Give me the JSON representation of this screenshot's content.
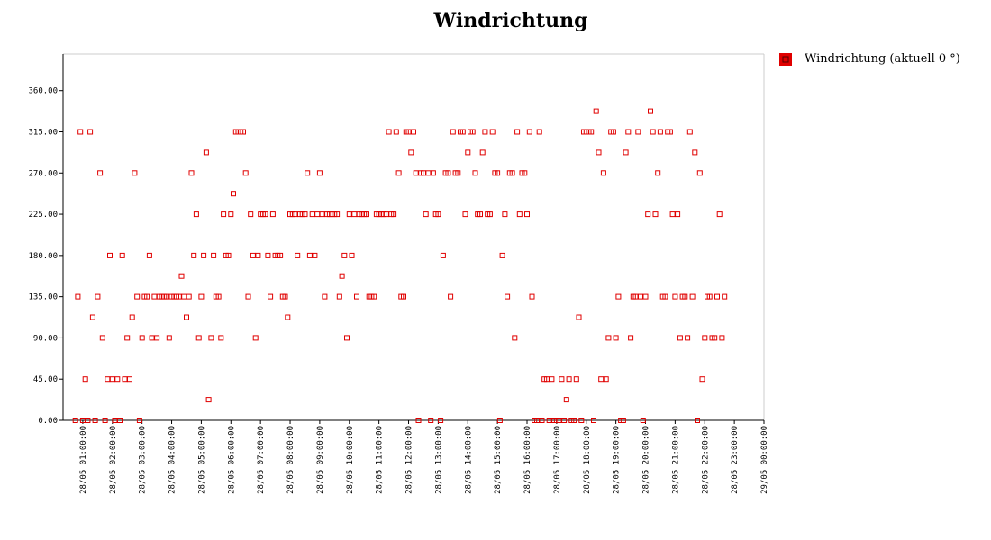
{
  "chart_data": {
    "type": "scatter",
    "title": "Windrichtung",
    "xlabel": "",
    "ylabel": "",
    "colors": {
      "series": "#e00000",
      "axis": "#000000",
      "frame": "#cccccc"
    },
    "legend": {
      "position": "right",
      "label": "Windrichtung (aktuell 0 °)"
    },
    "xlim": [
      "28/05 00:20",
      "29/05 00:00"
    ],
    "ylim": [
      0,
      400
    ],
    "y_ticks": [
      0,
      45,
      90,
      135,
      180,
      225,
      270,
      315,
      360
    ],
    "y_tick_labels": [
      "0.00",
      "45.00",
      "90.00",
      "135.00",
      "180.00",
      "225.00",
      "270.00",
      "315.00",
      "360.00"
    ],
    "x_tick_labels": [
      "28/05 01:00:00",
      "28/05 02:00:00",
      "28/05 03:00:00",
      "28/05 04:00:00",
      "28/05 05:00:00",
      "28/05 06:00:00",
      "28/05 07:00:00",
      "28/05 08:00:00",
      "28/05 09:00:00",
      "28/05 10:00:00",
      "28/05 11:00:00",
      "28/05 12:00:00",
      "28/05 13:00:00",
      "28/05 14:00:00",
      "28/05 15:00:00",
      "28/05 16:00:00",
      "28/05 17:00:00",
      "28/05 18:00:00",
      "28/05 19:00:00",
      "28/05 20:00:00",
      "28/05 21:00:00",
      "28/05 22:00:00",
      "28/05 23:00:00",
      "29/05 00:00:00"
    ],
    "series": [
      {
        "name": "Windrichtung (aktuell 0 °)",
        "points": [
          [
            "28/05 00:45",
            0
          ],
          [
            "28/05 00:50",
            135
          ],
          [
            "28/05 00:55",
            315
          ],
          [
            "28/05 01:00",
            0
          ],
          [
            "28/05 01:05",
            45
          ],
          [
            "28/05 01:10",
            0
          ],
          [
            "28/05 01:15",
            315
          ],
          [
            "28/05 01:20",
            112.5
          ],
          [
            "28/05 01:25",
            0
          ],
          [
            "28/05 01:30",
            135
          ],
          [
            "28/05 01:35",
            270
          ],
          [
            "28/05 01:40",
            90
          ],
          [
            "28/05 01:45",
            0
          ],
          [
            "28/05 01:50",
            45
          ],
          [
            "28/05 01:55",
            180
          ],
          [
            "28/05 02:00",
            45
          ],
          [
            "28/05 02:05",
            0
          ],
          [
            "28/05 02:10",
            45
          ],
          [
            "28/05 02:15",
            0
          ],
          [
            "28/05 02:20",
            180
          ],
          [
            "28/05 02:25",
            45
          ],
          [
            "28/05 02:30",
            90
          ],
          [
            "28/05 02:35",
            45
          ],
          [
            "28/05 02:40",
            112.5
          ],
          [
            "28/05 02:45",
            270
          ],
          [
            "28/05 02:50",
            135
          ],
          [
            "28/05 02:55",
            0
          ],
          [
            "28/05 03:00",
            90
          ],
          [
            "28/05 03:05",
            135
          ],
          [
            "28/05 03:10",
            135
          ],
          [
            "28/05 03:15",
            180
          ],
          [
            "28/05 03:20",
            90
          ],
          [
            "28/05 03:25",
            135
          ],
          [
            "28/05 03:30",
            90
          ],
          [
            "28/05 03:35",
            135
          ],
          [
            "28/05 03:40",
            135
          ],
          [
            "28/05 03:45",
            135
          ],
          [
            "28/05 03:50",
            135
          ],
          [
            "28/05 03:55",
            90
          ],
          [
            "28/05 04:00",
            135
          ],
          [
            "28/05 04:05",
            135
          ],
          [
            "28/05 04:10",
            135
          ],
          [
            "28/05 04:15",
            135
          ],
          [
            "28/05 04:20",
            157.5
          ],
          [
            "28/05 04:25",
            135
          ],
          [
            "28/05 04:30",
            112.5
          ],
          [
            "28/05 04:35",
            135
          ],
          [
            "28/05 04:40",
            270
          ],
          [
            "28/05 04:45",
            180
          ],
          [
            "28/05 04:50",
            225
          ],
          [
            "28/05 04:55",
            90
          ],
          [
            "28/05 05:00",
            135
          ],
          [
            "28/05 05:05",
            180
          ],
          [
            "28/05 05:10",
            292.5
          ],
          [
            "28/05 05:15",
            22.5
          ],
          [
            "28/05 05:20",
            90
          ],
          [
            "28/05 05:25",
            180
          ],
          [
            "28/05 05:30",
            135
          ],
          [
            "28/05 05:35",
            135
          ],
          [
            "28/05 05:40",
            90
          ],
          [
            "28/05 05:45",
            225
          ],
          [
            "28/05 05:50",
            180
          ],
          [
            "28/05 05:55",
            180
          ],
          [
            "28/05 06:00",
            225
          ],
          [
            "28/05 06:05",
            247.5
          ],
          [
            "28/05 06:10",
            315
          ],
          [
            "28/05 06:15",
            315
          ],
          [
            "28/05 06:20",
            315
          ],
          [
            "28/05 06:25",
            315
          ],
          [
            "28/05 06:30",
            270
          ],
          [
            "28/05 06:35",
            135
          ],
          [
            "28/05 06:40",
            225
          ],
          [
            "28/05 06:45",
            180
          ],
          [
            "28/05 06:50",
            90
          ],
          [
            "28/05 06:55",
            180
          ],
          [
            "28/05 07:00",
            225
          ],
          [
            "28/05 07:05",
            225
          ],
          [
            "28/05 07:10",
            225
          ],
          [
            "28/05 07:15",
            180
          ],
          [
            "28/05 07:20",
            135
          ],
          [
            "28/05 07:25",
            225
          ],
          [
            "28/05 07:30",
            180
          ],
          [
            "28/05 07:35",
            180
          ],
          [
            "28/05 07:40",
            180
          ],
          [
            "28/05 07:45",
            135
          ],
          [
            "28/05 07:50",
            135
          ],
          [
            "28/05 07:55",
            112.5
          ],
          [
            "28/05 08:00",
            225
          ],
          [
            "28/05 08:05",
            225
          ],
          [
            "28/05 08:10",
            225
          ],
          [
            "28/05 08:15",
            180
          ],
          [
            "28/05 08:20",
            225
          ],
          [
            "28/05 08:25",
            225
          ],
          [
            "28/05 08:30",
            225
          ],
          [
            "28/05 08:35",
            270
          ],
          [
            "28/05 08:40",
            180
          ],
          [
            "28/05 08:45",
            225
          ],
          [
            "28/05 08:50",
            180
          ],
          [
            "28/05 08:55",
            225
          ],
          [
            "28/05 09:00",
            270
          ],
          [
            "28/05 09:05",
            225
          ],
          [
            "28/05 09:10",
            135
          ],
          [
            "28/05 09:15",
            225
          ],
          [
            "28/05 09:20",
            225
          ],
          [
            "28/05 09:25",
            225
          ],
          [
            "28/05 09:30",
            225
          ],
          [
            "28/05 09:35",
            225
          ],
          [
            "28/05 09:40",
            135
          ],
          [
            "28/05 09:45",
            157.5
          ],
          [
            "28/05 09:50",
            180
          ],
          [
            "28/05 09:55",
            90
          ],
          [
            "28/05 10:00",
            225
          ],
          [
            "28/05 10:05",
            180
          ],
          [
            "28/05 10:10",
            225
          ],
          [
            "28/05 10:15",
            135
          ],
          [
            "28/05 10:20",
            225
          ],
          [
            "28/05 10:25",
            225
          ],
          [
            "28/05 10:30",
            225
          ],
          [
            "28/05 10:35",
            225
          ],
          [
            "28/05 10:40",
            135
          ],
          [
            "28/05 10:45",
            135
          ],
          [
            "28/05 10:50",
            135
          ],
          [
            "28/05 10:55",
            225
          ],
          [
            "28/05 11:00",
            225
          ],
          [
            "28/05 11:05",
            225
          ],
          [
            "28/05 11:10",
            225
          ],
          [
            "28/05 11:15",
            225
          ],
          [
            "28/05 11:20",
            315
          ],
          [
            "28/05 11:25",
            225
          ],
          [
            "28/05 11:30",
            225
          ],
          [
            "28/05 11:35",
            315
          ],
          [
            "28/05 11:40",
            270
          ],
          [
            "28/05 11:45",
            135
          ],
          [
            "28/05 11:50",
            135
          ],
          [
            "28/05 11:55",
            315
          ],
          [
            "28/05 12:00",
            315
          ],
          [
            "28/05 12:05",
            292.5
          ],
          [
            "28/05 12:10",
            315
          ],
          [
            "28/05 12:15",
            270
          ],
          [
            "28/05 12:20",
            0
          ],
          [
            "28/05 12:25",
            270
          ],
          [
            "28/05 12:30",
            270
          ],
          [
            "28/05 12:35",
            225
          ],
          [
            "28/05 12:40",
            270
          ],
          [
            "28/05 12:45",
            0
          ],
          [
            "28/05 12:50",
            270
          ],
          [
            "28/05 12:55",
            225
          ],
          [
            "28/05 13:00",
            225
          ],
          [
            "28/05 13:05",
            0
          ],
          [
            "28/05 13:10",
            180
          ],
          [
            "28/05 13:15",
            270
          ],
          [
            "28/05 13:20",
            270
          ],
          [
            "28/05 13:25",
            135
          ],
          [
            "28/05 13:30",
            315
          ],
          [
            "28/05 13:35",
            270
          ],
          [
            "28/05 13:40",
            270
          ],
          [
            "28/05 13:45",
            315
          ],
          [
            "28/05 13:50",
            315
          ],
          [
            "28/05 13:55",
            225
          ],
          [
            "28/05 14:00",
            292.5
          ],
          [
            "28/05 14:05",
            315
          ],
          [
            "28/05 14:10",
            315
          ],
          [
            "28/05 14:15",
            270
          ],
          [
            "28/05 14:20",
            225
          ],
          [
            "28/05 14:25",
            225
          ],
          [
            "28/05 14:30",
            292.5
          ],
          [
            "28/05 14:35",
            315
          ],
          [
            "28/05 14:40",
            225
          ],
          [
            "28/05 14:45",
            225
          ],
          [
            "28/05 14:50",
            315
          ],
          [
            "28/05 14:55",
            270
          ],
          [
            "28/05 15:00",
            270
          ],
          [
            "28/05 15:05",
            0
          ],
          [
            "28/05 15:10",
            180
          ],
          [
            "28/05 15:15",
            225
          ],
          [
            "28/05 15:20",
            135
          ],
          [
            "28/05 15:25",
            270
          ],
          [
            "28/05 15:30",
            270
          ],
          [
            "28/05 15:35",
            90
          ],
          [
            "28/05 15:40",
            315
          ],
          [
            "28/05 15:45",
            225
          ],
          [
            "28/05 15:50",
            270
          ],
          [
            "28/05 15:55",
            270
          ],
          [
            "28/05 16:00",
            225
          ],
          [
            "28/05 16:05",
            315
          ],
          [
            "28/05 16:10",
            135
          ],
          [
            "28/05 16:15",
            0
          ],
          [
            "28/05 16:20",
            0
          ],
          [
            "28/05 16:25",
            315
          ],
          [
            "28/05 16:30",
            0
          ],
          [
            "28/05 16:35",
            45
          ],
          [
            "28/05 16:40",
            45
          ],
          [
            "28/05 16:45",
            0
          ],
          [
            "28/05 16:50",
            45
          ],
          [
            "28/05 16:55",
            0
          ],
          [
            "28/05 17:00",
            0
          ],
          [
            "28/05 17:05",
            0
          ],
          [
            "28/05 17:10",
            45
          ],
          [
            "28/05 17:15",
            0
          ],
          [
            "28/05 17:20",
            22.5
          ],
          [
            "28/05 17:25",
            45
          ],
          [
            "28/05 17:30",
            0
          ],
          [
            "28/05 17:35",
            0
          ],
          [
            "28/05 17:40",
            45
          ],
          [
            "28/05 17:45",
            112.5
          ],
          [
            "28/05 17:50",
            0
          ],
          [
            "28/05 17:55",
            315
          ],
          [
            "28/05 18:00",
            315
          ],
          [
            "28/05 18:05",
            315
          ],
          [
            "28/05 18:10",
            315
          ],
          [
            "28/05 18:15",
            0
          ],
          [
            "28/05 18:20",
            337.5
          ],
          [
            "28/05 18:25",
            292.5
          ],
          [
            "28/05 18:30",
            45
          ],
          [
            "28/05 18:35",
            270
          ],
          [
            "28/05 18:40",
            45
          ],
          [
            "28/05 18:45",
            90
          ],
          [
            "28/05 18:50",
            315
          ],
          [
            "28/05 18:55",
            315
          ],
          [
            "28/05 19:00",
            90
          ],
          [
            "28/05 19:05",
            135
          ],
          [
            "28/05 19:10",
            0
          ],
          [
            "28/05 19:15",
            0
          ],
          [
            "28/05 19:20",
            292.5
          ],
          [
            "28/05 19:25",
            315
          ],
          [
            "28/05 19:30",
            90
          ],
          [
            "28/05 19:35",
            135
          ],
          [
            "28/05 19:40",
            135
          ],
          [
            "28/05 19:45",
            315
          ],
          [
            "28/05 19:50",
            135
          ],
          [
            "28/05 19:55",
            0
          ],
          [
            "28/05 20:00",
            135
          ],
          [
            "28/05 20:05",
            225
          ],
          [
            "28/05 20:10",
            337.5
          ],
          [
            "28/05 20:15",
            315
          ],
          [
            "28/05 20:20",
            225
          ],
          [
            "28/05 20:25",
            270
          ],
          [
            "28/05 20:30",
            315
          ],
          [
            "28/05 20:35",
            135
          ],
          [
            "28/05 20:40",
            135
          ],
          [
            "28/05 20:45",
            315
          ],
          [
            "28/05 20:50",
            315
          ],
          [
            "28/05 20:55",
            225
          ],
          [
            "28/05 21:00",
            135
          ],
          [
            "28/05 21:05",
            225
          ],
          [
            "28/05 21:10",
            90
          ],
          [
            "28/05 21:15",
            135
          ],
          [
            "28/05 21:20",
            135
          ],
          [
            "28/05 21:25",
            90
          ],
          [
            "28/05 21:30",
            315
          ],
          [
            "28/05 21:35",
            135
          ],
          [
            "28/05 21:40",
            292.5
          ],
          [
            "28/05 21:45",
            0
          ],
          [
            "28/05 21:50",
            270
          ],
          [
            "28/05 21:55",
            45
          ],
          [
            "28/05 22:00",
            90
          ],
          [
            "28/05 22:05",
            135
          ],
          [
            "28/05 22:10",
            135
          ],
          [
            "28/05 22:15",
            90
          ],
          [
            "28/05 22:20",
            90
          ],
          [
            "28/05 22:25",
            135
          ],
          [
            "28/05 22:30",
            225
          ],
          [
            "28/05 22:35",
            90
          ],
          [
            "28/05 22:40",
            135
          ]
        ]
      }
    ]
  }
}
